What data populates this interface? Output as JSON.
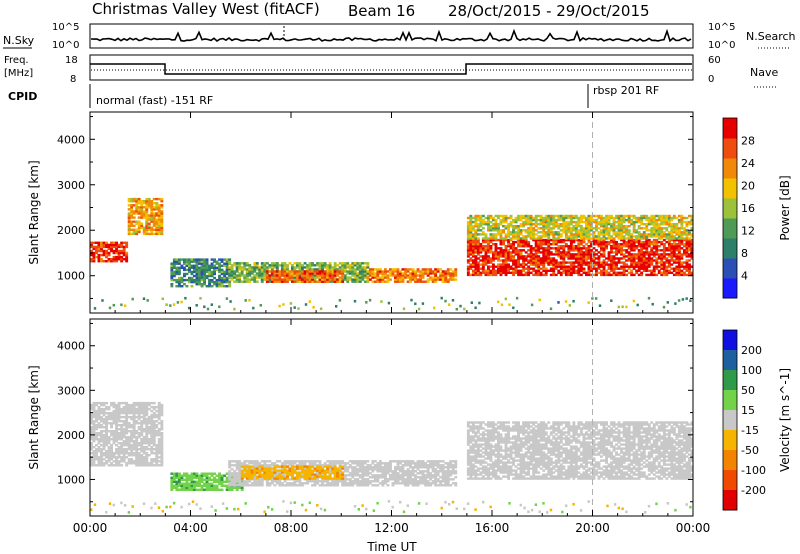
{
  "header": {
    "station": "Christmas Valley West (fitACF)",
    "beam": "Beam 16",
    "dates": "28/Oct/2015 - 29/Oct/2015"
  },
  "strip_labels": {
    "nsky": "N.Sky",
    "nsky_top": "10^5",
    "nsky_bottom": "10^0",
    "nsearch": "N.Search",
    "nsearch_top": "10^5",
    "nsearch_bottom": "10^0",
    "freq_line1": "Freq.",
    "freq_line2": "[MHz]",
    "freq_top": "18",
    "freq_bottom": "8",
    "nave": "Nave",
    "nave_top": "60",
    "nave_bottom": "0",
    "cpid": "CPID",
    "cpid_mode1": "normal (fast) -151 RF",
    "cpid_mode2": "rbsp 201 RF"
  },
  "colors": {
    "power": [
      "#1a1aff",
      "#2a4fb5",
      "#2e7f6a",
      "#4f9a55",
      "#9bc23a",
      "#f2c200",
      "#f2880a",
      "#ef4d0f",
      "#e60000"
    ],
    "velocity": [
      "#1010e0",
      "#1d5f9f",
      "#2f9a4a",
      "#72d24a",
      "#c8c8c8",
      "#f4b400",
      "#f28400",
      "#f04a00",
      "#e00000"
    ],
    "dashed_line": "#b0b0b0"
  },
  "chart_data": [
    {
      "type": "heatmap",
      "title": "Power",
      "xlabel": "",
      "ylabel": "Slant Range [km]",
      "xlim_hours": [
        0,
        24
      ],
      "ylim": [
        180,
        4600
      ],
      "x_ticks": [
        "00:00",
        "04:00",
        "08:00",
        "12:00",
        "16:00",
        "20:00",
        "00:00"
      ],
      "y_ticks": [
        1000,
        2000,
        3000,
        4000
      ],
      "colorbar": {
        "label": "Power [dB]",
        "ticks": [
          4,
          8,
          12,
          16,
          20,
          24,
          28
        ],
        "range": [
          0,
          32
        ]
      },
      "echo_regions": [
        {
          "t0": 0.0,
          "t1": 1.5,
          "r0": 1300,
          "r1": 1750,
          "value": 28
        },
        {
          "t0": 1.5,
          "t1": 2.9,
          "r0": 1900,
          "r1": 2700,
          "value": 22
        },
        {
          "t0": 3.2,
          "t1": 5.5,
          "r0": 750,
          "r1": 1350,
          "value": 10
        },
        {
          "t0": 5.5,
          "t1": 11.0,
          "r0": 850,
          "r1": 1300,
          "value": 14
        },
        {
          "t0": 7.0,
          "t1": 10.0,
          "r0": 850,
          "r1": 1100,
          "value": 26
        },
        {
          "t0": 11.0,
          "t1": 14.5,
          "r0": 850,
          "r1": 1150,
          "value": 24
        },
        {
          "t0": 15.0,
          "t1": 24.0,
          "r0": 1000,
          "r1": 1800,
          "value": 29
        },
        {
          "t0": 15.0,
          "t1": 24.0,
          "r0": 1800,
          "r1": 2300,
          "value": 18
        }
      ]
    },
    {
      "type": "heatmap",
      "title": "Velocity",
      "xlabel": "Time UT",
      "ylabel": "Slant Range [km]",
      "xlim_hours": [
        0,
        24
      ],
      "ylim": [
        180,
        4600
      ],
      "x_ticks": [
        "00:00",
        "04:00",
        "08:00",
        "12:00",
        "16:00",
        "20:00",
        "00:00"
      ],
      "y_ticks": [
        1000,
        2000,
        3000,
        4000
      ],
      "colorbar": {
        "label": "Velocity [m s^-1]",
        "ticks": [
          200,
          100,
          50,
          15,
          -15,
          -50,
          -100,
          -200
        ]
      },
      "echo_regions": [
        {
          "t0": 0.0,
          "t1": 2.9,
          "r0": 1300,
          "r1": 2700,
          "value": 0
        },
        {
          "t0": 3.2,
          "t1": 6.0,
          "r0": 750,
          "r1": 1150,
          "value": 40
        },
        {
          "t0": 5.5,
          "t1": 14.5,
          "r0": 850,
          "r1": 1400,
          "value": 0
        },
        {
          "t0": 6.0,
          "t1": 10.0,
          "r0": 1000,
          "r1": 1300,
          "value": -40
        },
        {
          "t0": 15.0,
          "t1": 24.0,
          "r0": 1000,
          "r1": 2300,
          "value": 0
        }
      ]
    }
  ]
}
